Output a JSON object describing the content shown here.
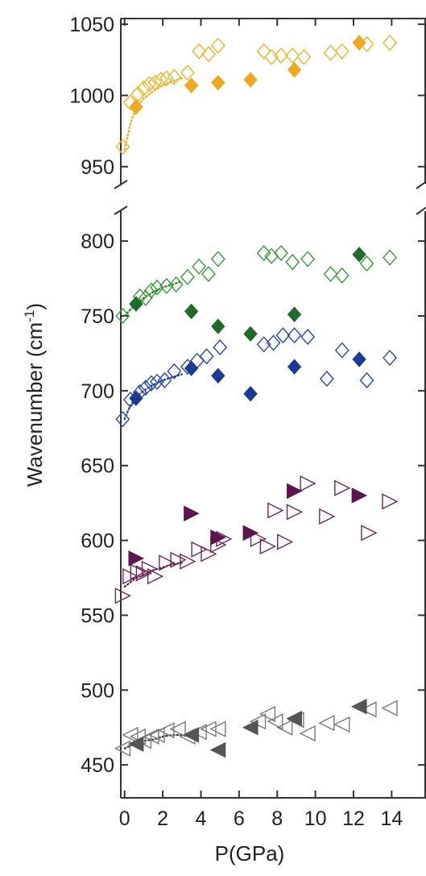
{
  "chart_data": {
    "type": "scatter",
    "xlabel": "P(GPa)",
    "ylabel_parts": [
      "Wavenumber (cm",
      "-1",
      ")"
    ],
    "xlim": [
      -0.2,
      15.8
    ],
    "xticks": [
      0,
      2,
      4,
      6,
      8,
      10,
      12,
      14
    ],
    "xtick_labels": [
      "0",
      "2",
      "4",
      "6",
      "8",
      "10",
      "12",
      "14"
    ],
    "upper_panel": {
      "ylim": [
        938,
        1054
      ],
      "yticks": [
        950,
        1000,
        1050
      ],
      "ytick_labels": [
        "950",
        "1000",
        "1050"
      ]
    },
    "lower_panel": {
      "ylim": [
        428,
        820
      ],
      "yticks": [
        450,
        500,
        550,
        600,
        650,
        700,
        750,
        800
      ],
      "ytick_labels": [
        "450",
        "500",
        "550",
        "600",
        "650",
        "700",
        "750",
        "800"
      ]
    },
    "axis_break": true,
    "grid": false,
    "legend": "none",
    "series": [
      {
        "marker": "diamond",
        "filled": false,
        "color": "#f5b324",
        "panel": "upper",
        "points": [
          [
            -0.1,
            964
          ],
          [
            0.3,
            995
          ],
          [
            0.7,
            1001
          ],
          [
            1.0,
            1005
          ],
          [
            1.3,
            1008
          ],
          [
            1.6,
            1009
          ],
          [
            1.9,
            1011
          ],
          [
            2.2,
            1012
          ],
          [
            2.6,
            1013
          ],
          [
            3.3,
            1016
          ],
          [
            3.9,
            1031
          ],
          [
            4.4,
            1029
          ],
          [
            4.9,
            1035
          ],
          [
            7.3,
            1031
          ],
          [
            7.7,
            1027
          ],
          [
            8.2,
            1028
          ],
          [
            8.8,
            1028
          ],
          [
            9.4,
            1027
          ],
          [
            10.8,
            1030
          ],
          [
            11.4,
            1031
          ],
          [
            12.7,
            1036
          ],
          [
            13.9,
            1037
          ]
        ]
      },
      {
        "marker": "diamond",
        "filled": true,
        "color": "#f0a820",
        "panel": "upper",
        "points": [
          [
            0.6,
            992
          ],
          [
            3.5,
            1007
          ],
          [
            4.9,
            1009
          ],
          [
            6.6,
            1011
          ],
          [
            8.9,
            1018
          ],
          [
            12.3,
            1037
          ]
        ]
      },
      {
        "marker": "diamond",
        "filled": false,
        "color": "#3a9a3a",
        "panel": "lower",
        "points": [
          [
            -0.1,
            750
          ],
          [
            0.8,
            763
          ],
          [
            1.1,
            762
          ],
          [
            1.4,
            767
          ],
          [
            1.7,
            769
          ],
          [
            2.2,
            770
          ],
          [
            2.7,
            771
          ],
          [
            3.3,
            776
          ],
          [
            3.9,
            783
          ],
          [
            4.4,
            778
          ],
          [
            4.9,
            788
          ],
          [
            7.3,
            792
          ],
          [
            7.7,
            790
          ],
          [
            8.2,
            792
          ],
          [
            8.8,
            786
          ],
          [
            9.6,
            788
          ],
          [
            10.8,
            778
          ],
          [
            11.4,
            777
          ],
          [
            12.7,
            785
          ],
          [
            13.9,
            789
          ]
        ]
      },
      {
        "marker": "diamond",
        "filled": true,
        "color": "#1e6b2a",
        "panel": "lower",
        "points": [
          [
            0.6,
            758
          ],
          [
            3.5,
            753
          ],
          [
            4.9,
            743
          ],
          [
            6.6,
            738
          ],
          [
            8.9,
            751
          ],
          [
            12.3,
            791
          ]
        ]
      },
      {
        "marker": "diamond",
        "filled": false,
        "color": "#2a4aa8",
        "panel": "lower",
        "points": [
          [
            -0.1,
            681
          ],
          [
            0.3,
            694
          ],
          [
            0.8,
            699
          ],
          [
            1.1,
            702
          ],
          [
            1.4,
            705
          ],
          [
            1.7,
            706
          ],
          [
            2.1,
            707
          ],
          [
            2.6,
            713
          ],
          [
            3.3,
            716
          ],
          [
            3.8,
            720
          ],
          [
            4.3,
            723
          ],
          [
            5.0,
            729
          ],
          [
            7.3,
            731
          ],
          [
            7.8,
            732
          ],
          [
            8.3,
            737
          ],
          [
            8.9,
            737
          ],
          [
            9.6,
            736
          ],
          [
            10.6,
            708
          ],
          [
            11.4,
            727
          ],
          [
            12.7,
            707
          ],
          [
            13.9,
            722
          ]
        ]
      },
      {
        "marker": "diamond",
        "filled": true,
        "color": "#1a3a96",
        "panel": "lower",
        "points": [
          [
            0.6,
            695
          ],
          [
            3.5,
            715
          ],
          [
            4.9,
            710
          ],
          [
            6.6,
            698
          ],
          [
            8.9,
            716
          ],
          [
            12.3,
            721
          ]
        ]
      },
      {
        "marker": "triangle-right",
        "filled": false,
        "color": "#6b2a55",
        "panel": "lower",
        "points": [
          [
            -0.1,
            563
          ],
          [
            0.3,
            576
          ],
          [
            0.7,
            579
          ],
          [
            1.0,
            578
          ],
          [
            1.3,
            581
          ],
          [
            1.6,
            576
          ],
          [
            2.2,
            585
          ],
          [
            2.8,
            587
          ],
          [
            3.3,
            586
          ],
          [
            3.9,
            594
          ],
          [
            4.4,
            591
          ],
          [
            4.9,
            597
          ],
          [
            5.2,
            601
          ],
          [
            7.0,
            601
          ],
          [
            7.5,
            596
          ],
          [
            7.9,
            620
          ],
          [
            8.4,
            599
          ],
          [
            8.9,
            619
          ],
          [
            9.6,
            638
          ],
          [
            10.6,
            616
          ],
          [
            11.4,
            635
          ],
          [
            12.8,
            605
          ],
          [
            13.9,
            626
          ]
        ]
      },
      {
        "marker": "triangle-right",
        "filled": true,
        "color": "#5e1450",
        "panel": "lower",
        "points": [
          [
            0.6,
            588
          ],
          [
            3.5,
            618
          ],
          [
            4.9,
            602
          ],
          [
            6.6,
            605
          ],
          [
            8.9,
            633
          ],
          [
            12.3,
            630
          ]
        ]
      },
      {
        "marker": "triangle-left",
        "filled": false,
        "color": "#7a7a7a",
        "panel": "lower",
        "points": [
          [
            -0.1,
            461
          ],
          [
            0.3,
            470
          ],
          [
            0.7,
            469
          ],
          [
            1.0,
            466
          ],
          [
            1.4,
            469
          ],
          [
            1.7,
            470
          ],
          [
            2.2,
            473
          ],
          [
            2.8,
            474
          ],
          [
            3.3,
            469
          ],
          [
            3.9,
            472
          ],
          [
            4.4,
            474
          ],
          [
            4.9,
            474
          ],
          [
            7.0,
            479
          ],
          [
            7.5,
            484
          ],
          [
            7.9,
            479
          ],
          [
            8.4,
            475
          ],
          [
            9.0,
            480
          ],
          [
            9.6,
            471
          ],
          [
            10.6,
            478
          ],
          [
            11.4,
            477
          ],
          [
            12.8,
            487
          ],
          [
            13.9,
            488
          ]
        ]
      },
      {
        "marker": "triangle-left",
        "filled": true,
        "color": "#555555",
        "panel": "lower",
        "points": [
          [
            0.6,
            464
          ],
          [
            3.5,
            470
          ],
          [
            4.9,
            460
          ],
          [
            6.6,
            475
          ],
          [
            8.9,
            481
          ],
          [
            12.3,
            489
          ]
        ]
      }
    ],
    "fit_curves": [
      {
        "color": "#f0a820",
        "panel": "upper",
        "points": [
          [
            0,
            962
          ],
          [
            0.3,
            980
          ],
          [
            0.6,
            991
          ],
          [
            1.0,
            998
          ],
          [
            1.5,
            1003
          ],
          [
            2.0,
            1007
          ],
          [
            2.5,
            1010
          ],
          [
            3.0,
            1012
          ]
        ]
      },
      {
        "color": "#2a7a2a",
        "panel": "lower",
        "points": [
          [
            0,
            750
          ],
          [
            0.5,
            757
          ],
          [
            1.0,
            762
          ],
          [
            1.5,
            766
          ],
          [
            2.0,
            769
          ],
          [
            2.5,
            771
          ],
          [
            3.0,
            773
          ]
        ]
      },
      {
        "color": "#1a3a96",
        "panel": "lower",
        "points": [
          [
            0,
            681
          ],
          [
            0.3,
            690
          ],
          [
            0.6,
            696
          ],
          [
            1.0,
            700
          ],
          [
            1.5,
            704
          ],
          [
            2.0,
            707
          ],
          [
            2.5,
            709
          ],
          [
            3.0,
            711
          ]
        ]
      },
      {
        "color": "#5e1450",
        "panel": "lower",
        "points": [
          [
            0,
            569
          ],
          [
            0.5,
            574
          ],
          [
            1.0,
            577
          ],
          [
            1.5,
            580
          ],
          [
            2.0,
            582
          ],
          [
            2.5,
            584
          ],
          [
            3.0,
            585
          ]
        ]
      },
      {
        "color": "#333333",
        "panel": "lower",
        "points": [
          [
            0,
            461
          ],
          [
            0.5,
            464
          ],
          [
            1.0,
            466
          ],
          [
            1.5,
            467
          ],
          [
            2.0,
            469
          ],
          [
            2.5,
            470
          ],
          [
            3.0,
            470
          ]
        ]
      }
    ]
  }
}
